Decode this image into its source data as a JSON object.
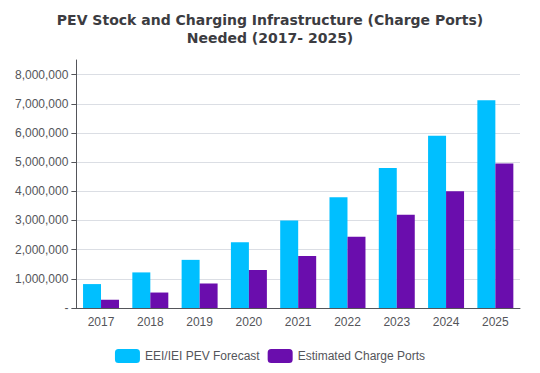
{
  "chart_data": {
    "type": "bar",
    "title": "PEV Stock and Charging Infrastructure (Charge Ports)\nNeeded (2017- 2025)",
    "categories": [
      "2017",
      "2018",
      "2019",
      "2020",
      "2021",
      "2022",
      "2023",
      "2024",
      "2025"
    ],
    "series": [
      {
        "name": "EEI/IEI PEV Forecast",
        "color": "#00BFFF",
        "values": [
          820000,
          1220000,
          1650000,
          2250000,
          3000000,
          3800000,
          4800000,
          5900000,
          7120000
        ]
      },
      {
        "name": "Estimated Charge Ports",
        "color": "#6A0DAD",
        "values": [
          280000,
          530000,
          840000,
          1300000,
          1780000,
          2440000,
          3200000,
          4000000,
          4950000
        ]
      }
    ],
    "ylim": [
      0,
      8500000
    ],
    "yticks": [
      {
        "value": 0,
        "label": "-"
      },
      {
        "value": 1000000,
        "label": "1,000,000"
      },
      {
        "value": 2000000,
        "label": "2,000,000"
      },
      {
        "value": 3000000,
        "label": "3,000,000"
      },
      {
        "value": 4000000,
        "label": "4,000,000"
      },
      {
        "value": 5000000,
        "label": "5,000,000"
      },
      {
        "value": 6000000,
        "label": "6,000,000"
      },
      {
        "value": 7000000,
        "label": "7,000,000"
      },
      {
        "value": 8000000,
        "label": "8,000,000"
      }
    ],
    "grid": true,
    "legend": "bottom"
  }
}
